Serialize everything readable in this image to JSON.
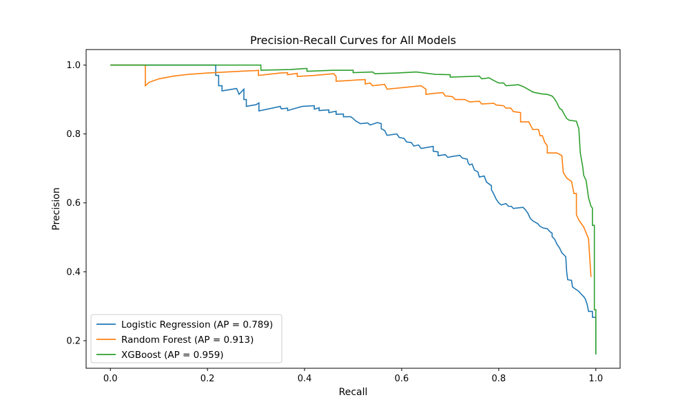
{
  "chart_data": {
    "type": "line",
    "title": "Precision-Recall Curves for All Models",
    "xlabel": "Recall",
    "ylabel": "Precision",
    "xlim": [
      -0.05,
      1.05
    ],
    "ylim": [
      0.12,
      1.045
    ],
    "xticks": [
      0.0,
      0.2,
      0.4,
      0.6,
      0.8,
      1.0
    ],
    "xtick_labels": [
      "0.0",
      "0.2",
      "0.4",
      "0.6",
      "0.8",
      "1.0"
    ],
    "yticks": [
      0.2,
      0.4,
      0.6,
      0.8,
      1.0
    ],
    "ytick_labels": [
      "0.2",
      "0.4",
      "0.6",
      "0.8",
      "1.0"
    ],
    "grid": false,
    "legend_position": "lower-left",
    "series": [
      {
        "name": "Logistic Regression (AP = 0.789)",
        "color": "#1f77b4",
        "points": [
          [
            0.0,
            1.0
          ],
          [
            0.217,
            1.0
          ],
          [
            0.217,
            0.97
          ],
          [
            0.223,
            0.97
          ],
          [
            0.223,
            0.94
          ],
          [
            0.23,
            0.94
          ],
          [
            0.23,
            0.925
          ],
          [
            0.26,
            0.932
          ],
          [
            0.265,
            0.915
          ],
          [
            0.275,
            0.93
          ],
          [
            0.275,
            0.9
          ],
          [
            0.28,
            0.9
          ],
          [
            0.28,
            0.88
          ],
          [
            0.3,
            0.885
          ],
          [
            0.306,
            0.89
          ],
          [
            0.306,
            0.867
          ],
          [
            0.35,
            0.88
          ],
          [
            0.352,
            0.873
          ],
          [
            0.365,
            0.875
          ],
          [
            0.365,
            0.868
          ],
          [
            0.395,
            0.88
          ],
          [
            0.42,
            0.882
          ],
          [
            0.42,
            0.872
          ],
          [
            0.43,
            0.876
          ],
          [
            0.43,
            0.868
          ],
          [
            0.45,
            0.87
          ],
          [
            0.45,
            0.862
          ],
          [
            0.465,
            0.866
          ],
          [
            0.465,
            0.857
          ],
          [
            0.48,
            0.858
          ],
          [
            0.48,
            0.85
          ],
          [
            0.495,
            0.85
          ],
          [
            0.5,
            0.845
          ],
          [
            0.505,
            0.838
          ],
          [
            0.51,
            0.834
          ],
          [
            0.515,
            0.83
          ],
          [
            0.53,
            0.832
          ],
          [
            0.535,
            0.826
          ],
          [
            0.55,
            0.833
          ],
          [
            0.558,
            0.83
          ],
          [
            0.558,
            0.815
          ],
          [
            0.565,
            0.81
          ],
          [
            0.57,
            0.796
          ],
          [
            0.59,
            0.8
          ],
          [
            0.595,
            0.79
          ],
          [
            0.605,
            0.787
          ],
          [
            0.61,
            0.777
          ],
          [
            0.62,
            0.775
          ],
          [
            0.625,
            0.765
          ],
          [
            0.635,
            0.768
          ],
          [
            0.64,
            0.758
          ],
          [
            0.665,
            0.764
          ],
          [
            0.665,
            0.75
          ],
          [
            0.675,
            0.748
          ],
          [
            0.675,
            0.737
          ],
          [
            0.69,
            0.74
          ],
          [
            0.695,
            0.732
          ],
          [
            0.705,
            0.735
          ],
          [
            0.72,
            0.738
          ],
          [
            0.725,
            0.73
          ],
          [
            0.735,
            0.727
          ],
          [
            0.737,
            0.716
          ],
          [
            0.74,
            0.71
          ],
          [
            0.745,
            0.713
          ],
          [
            0.75,
            0.695
          ],
          [
            0.757,
            0.69
          ],
          [
            0.76,
            0.675
          ],
          [
            0.77,
            0.678
          ],
          [
            0.775,
            0.66
          ],
          [
            0.785,
            0.65
          ],
          [
            0.785,
            0.638
          ],
          [
            0.79,
            0.625
          ],
          [
            0.795,
            0.61
          ],
          [
            0.8,
            0.6
          ],
          [
            0.805,
            0.594
          ],
          [
            0.815,
            0.598
          ],
          [
            0.82,
            0.59
          ],
          [
            0.826,
            0.59
          ],
          [
            0.83,
            0.584
          ],
          [
            0.85,
            0.587
          ],
          [
            0.855,
            0.58
          ],
          [
            0.86,
            0.57
          ],
          [
            0.865,
            0.555
          ],
          [
            0.87,
            0.548
          ],
          [
            0.88,
            0.54
          ],
          [
            0.885,
            0.532
          ],
          [
            0.892,
            0.527
          ],
          [
            0.9,
            0.525
          ],
          [
            0.905,
            0.517
          ],
          [
            0.91,
            0.512
          ],
          [
            0.91,
            0.502
          ],
          [
            0.915,
            0.495
          ],
          [
            0.92,
            0.48
          ],
          [
            0.925,
            0.47
          ],
          [
            0.93,
            0.455
          ],
          [
            0.938,
            0.444
          ],
          [
            0.94,
            0.4
          ],
          [
            0.942,
            0.377
          ],
          [
            0.95,
            0.375
          ],
          [
            0.952,
            0.356
          ],
          [
            0.958,
            0.35
          ],
          [
            0.965,
            0.343
          ],
          [
            0.97,
            0.335
          ],
          [
            0.975,
            0.328
          ],
          [
            0.978,
            0.322
          ],
          [
            0.982,
            0.306
          ],
          [
            0.985,
            0.285
          ],
          [
            0.993,
            0.285
          ],
          [
            0.993,
            0.268
          ],
          [
            1.0,
            0.268
          ],
          [
            1.0,
            0.16
          ]
        ]
      },
      {
        "name": "Random Forest (AP = 0.913)",
        "color": "#ff7f0e",
        "points": [
          [
            0.0,
            1.0
          ],
          [
            0.072,
            1.0
          ],
          [
            0.072,
            0.94
          ],
          [
            0.08,
            0.95
          ],
          [
            0.1,
            0.96
          ],
          [
            0.13,
            0.968
          ],
          [
            0.16,
            0.973
          ],
          [
            0.2,
            0.977
          ],
          [
            0.24,
            0.98
          ],
          [
            0.28,
            0.983
          ],
          [
            0.3,
            0.984
          ],
          [
            0.305,
            0.985
          ],
          [
            0.305,
            0.97
          ],
          [
            0.35,
            0.977
          ],
          [
            0.365,
            0.978
          ],
          [
            0.365,
            0.972
          ],
          [
            0.385,
            0.976
          ],
          [
            0.385,
            0.967
          ],
          [
            0.42,
            0.97
          ],
          [
            0.46,
            0.975
          ],
          [
            0.465,
            0.967
          ],
          [
            0.465,
            0.953
          ],
          [
            0.49,
            0.955
          ],
          [
            0.51,
            0.957
          ],
          [
            0.525,
            0.958
          ],
          [
            0.525,
            0.945
          ],
          [
            0.535,
            0.948
          ],
          [
            0.54,
            0.94
          ],
          [
            0.565,
            0.944
          ],
          [
            0.57,
            0.93
          ],
          [
            0.64,
            0.94
          ],
          [
            0.65,
            0.93
          ],
          [
            0.65,
            0.915
          ],
          [
            0.667,
            0.918
          ],
          [
            0.685,
            0.92
          ],
          [
            0.69,
            0.91
          ],
          [
            0.695,
            0.91
          ],
          [
            0.705,
            0.908
          ],
          [
            0.71,
            0.9
          ],
          [
            0.73,
            0.9
          ],
          [
            0.74,
            0.893
          ],
          [
            0.76,
            0.895
          ],
          [
            0.765,
            0.887
          ],
          [
            0.79,
            0.889
          ],
          [
            0.795,
            0.884
          ],
          [
            0.81,
            0.882
          ],
          [
            0.815,
            0.875
          ],
          [
            0.825,
            0.875
          ],
          [
            0.83,
            0.865
          ],
          [
            0.845,
            0.862
          ],
          [
            0.845,
            0.835
          ],
          [
            0.862,
            0.835
          ],
          [
            0.87,
            0.813
          ],
          [
            0.882,
            0.813
          ],
          [
            0.885,
            0.795
          ],
          [
            0.89,
            0.795
          ],
          [
            0.895,
            0.775
          ],
          [
            0.9,
            0.766
          ],
          [
            0.9,
            0.745
          ],
          [
            0.92,
            0.745
          ],
          [
            0.93,
            0.737
          ],
          [
            0.933,
            0.688
          ],
          [
            0.94,
            0.672
          ],
          [
            0.95,
            0.662
          ],
          [
            0.955,
            0.627
          ],
          [
            0.96,
            0.627
          ],
          [
            0.96,
            0.566
          ],
          [
            0.965,
            0.55
          ],
          [
            0.97,
            0.54
          ],
          [
            0.975,
            0.53
          ],
          [
            0.985,
            0.496
          ],
          [
            0.99,
            0.385
          ],
          [
            0.99,
            0.385
          ]
        ]
      },
      {
        "name": "XGBoost (AP = 0.959)",
        "color": "#2ca02c",
        "points": [
          [
            0.0,
            1.0
          ],
          [
            0.31,
            1.0
          ],
          [
            0.31,
            0.985
          ],
          [
            0.37,
            0.987
          ],
          [
            0.4,
            0.99
          ],
          [
            0.405,
            0.99
          ],
          [
            0.405,
            0.982
          ],
          [
            0.46,
            0.985
          ],
          [
            0.5,
            0.985
          ],
          [
            0.5,
            0.978
          ],
          [
            0.54,
            0.98
          ],
          [
            0.545,
            0.975
          ],
          [
            0.59,
            0.977
          ],
          [
            0.63,
            0.98
          ],
          [
            0.67,
            0.973
          ],
          [
            0.7,
            0.972
          ],
          [
            0.7,
            0.965
          ],
          [
            0.76,
            0.968
          ],
          [
            0.765,
            0.96
          ],
          [
            0.78,
            0.963
          ],
          [
            0.79,
            0.955
          ],
          [
            0.8,
            0.948
          ],
          [
            0.81,
            0.948
          ],
          [
            0.815,
            0.94
          ],
          [
            0.84,
            0.943
          ],
          [
            0.85,
            0.938
          ],
          [
            0.86,
            0.93
          ],
          [
            0.87,
            0.922
          ],
          [
            0.875,
            0.92
          ],
          [
            0.89,
            0.916
          ],
          [
            0.9,
            0.915
          ],
          [
            0.91,
            0.91
          ],
          [
            0.915,
            0.902
          ],
          [
            0.92,
            0.89
          ],
          [
            0.925,
            0.875
          ],
          [
            0.93,
            0.87
          ],
          [
            0.935,
            0.857
          ],
          [
            0.94,
            0.845
          ],
          [
            0.945,
            0.84
          ],
          [
            0.96,
            0.837
          ],
          [
            0.965,
            0.815
          ],
          [
            0.968,
            0.745
          ],
          [
            0.973,
            0.705
          ],
          [
            0.975,
            0.68
          ],
          [
            0.98,
            0.665
          ],
          [
            0.985,
            0.615
          ],
          [
            0.99,
            0.59
          ],
          [
            0.993,
            0.585
          ],
          [
            0.993,
            0.535
          ],
          [
            0.997,
            0.535
          ],
          [
            0.997,
            0.29
          ],
          [
            1.0,
            0.29
          ],
          [
            1.0,
            0.16
          ]
        ]
      }
    ]
  }
}
